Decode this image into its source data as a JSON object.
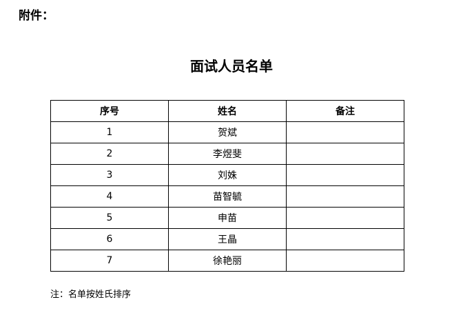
{
  "attachment_label": "附件：",
  "title": "面试人员名单",
  "table": {
    "headers": [
      "序号",
      "姓名",
      "备注"
    ],
    "rows": [
      {
        "no": "1",
        "name": "贺斌",
        "remark": ""
      },
      {
        "no": "2",
        "name": "李煜斐",
        "remark": ""
      },
      {
        "no": "3",
        "name": "刘姝",
        "remark": ""
      },
      {
        "no": "4",
        "name": "苗智毓",
        "remark": ""
      },
      {
        "no": "5",
        "name": "申苗",
        "remark": ""
      },
      {
        "no": "6",
        "name": "王晶",
        "remark": ""
      },
      {
        "no": "7",
        "name": "徐艳丽",
        "remark": ""
      }
    ]
  },
  "note": "注：名单按姓氏排序"
}
